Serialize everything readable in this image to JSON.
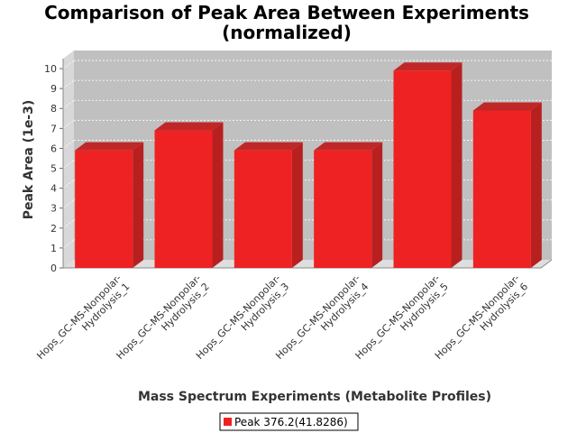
{
  "chart_data": {
    "type": "bar",
    "title_lines": [
      "Comparison of Peak Area Between Experiments",
      "(normalized)"
    ],
    "xlabel": "Mass Spectrum Experiments (Metabolite Profiles)",
    "ylabel": "Peak Area (1e-3)",
    "categories": [
      [
        "Hops_GC-MS-Nonpolar-",
        "Hydrolysis_1"
      ],
      [
        "Hops_GC-MS-Nonpolar-",
        "Hydrolysis_2"
      ],
      [
        "Hops_GC-MS-Nonpolar-",
        "Hydrolysis_3"
      ],
      [
        "Hops_GC-MS-Nonpolar-",
        "Hydrolysis_4"
      ],
      [
        "Hops_GC-MS-Nonpolar-",
        "Hydrolysis_5"
      ],
      [
        "Hops_GC-MS-Nonpolar-",
        "Hydrolysis_6"
      ]
    ],
    "series": [
      {
        "name": "Peak 376.2(41.8286)",
        "values": [
          5.9,
          6.9,
          5.9,
          5.9,
          9.9,
          7.9
        ]
      }
    ],
    "ylim": [
      0,
      10.5
    ],
    "yticks": [
      0,
      1,
      2,
      3,
      4,
      5,
      6,
      7,
      8,
      9,
      10
    ],
    "grid": true,
    "legend_position": "bottom",
    "bar_color": "#ee2222"
  }
}
